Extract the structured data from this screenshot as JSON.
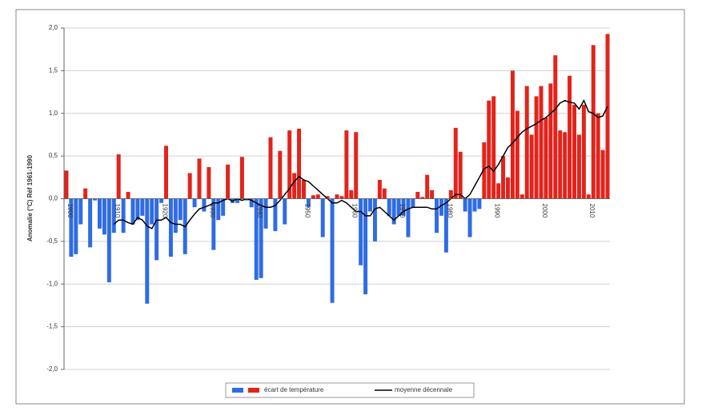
{
  "chart_data": {
    "type": "bar",
    "y_label": "Anomalie (°C) Réf 1961-1990",
    "x": [
      1900,
      1901,
      1902,
      1903,
      1904,
      1905,
      1906,
      1907,
      1908,
      1909,
      1910,
      1911,
      1912,
      1913,
      1914,
      1915,
      1916,
      1917,
      1918,
      1919,
      1920,
      1921,
      1922,
      1923,
      1924,
      1925,
      1926,
      1927,
      1928,
      1929,
      1930,
      1931,
      1932,
      1933,
      1934,
      1935,
      1936,
      1937,
      1938,
      1939,
      1940,
      1941,
      1942,
      1943,
      1944,
      1945,
      1946,
      1947,
      1948,
      1949,
      1950,
      1951,
      1952,
      1953,
      1954,
      1955,
      1956,
      1957,
      1958,
      1959,
      1960,
      1961,
      1962,
      1963,
      1964,
      1965,
      1966,
      1967,
      1968,
      1969,
      1970,
      1971,
      1972,
      1973,
      1974,
      1975,
      1976,
      1977,
      1978,
      1979,
      1980,
      1981,
      1982,
      1983,
      1984,
      1985,
      1986,
      1987,
      1988,
      1989,
      1990,
      1991,
      1992,
      1993,
      1994,
      1995,
      1996,
      1997,
      1998,
      1999,
      2000,
      2001,
      2002,
      2003,
      2004,
      2005,
      2006,
      2007,
      2008,
      2009,
      2010,
      2011,
      2012,
      2013,
      2014
    ],
    "series": [
      {
        "name": "écart de température",
        "type": "bar",
        "color_positive": "#e3231b",
        "color_negative": "#2f6ce5",
        "values": [
          0.33,
          -0.68,
          -0.65,
          -0.3,
          0.12,
          -0.57,
          -0.02,
          -0.35,
          -0.42,
          -0.98,
          -0.4,
          0.52,
          -0.4,
          0.08,
          -0.3,
          -0.25,
          -0.2,
          -1.23,
          -0.3,
          -0.72,
          -0.05,
          0.62,
          -0.68,
          -0.4,
          -0.25,
          -0.65,
          0.3,
          -0.1,
          0.47,
          -0.15,
          0.37,
          -0.6,
          -0.25,
          -0.2,
          0.4,
          -0.05,
          -0.05,
          0.49,
          -0.02,
          -0.1,
          -0.95,
          -0.93,
          -0.35,
          0.72,
          -0.38,
          0.56,
          -0.3,
          0.8,
          0.3,
          0.82,
          0.22,
          -0.1,
          0.04,
          0.05,
          -0.45,
          0.03,
          -1.22,
          0.05,
          0.03,
          0.8,
          0.1,
          0.78,
          -0.78,
          -1.12,
          -0.15,
          -0.5,
          0.22,
          0.12,
          -0.2,
          -0.3,
          -0.2,
          -0.2,
          -0.45,
          -0.1,
          0.08,
          0.02,
          0.28,
          0.1,
          -0.4,
          -0.2,
          -0.63,
          0.1,
          0.83,
          0.55,
          -0.15,
          -0.45,
          -0.15,
          -0.12,
          0.66,
          1.15,
          1.2,
          0.18,
          0.5,
          0.25,
          1.5,
          1.03,
          0.05,
          1.32,
          0.75,
          1.2,
          1.32,
          0.95,
          1.35,
          1.68,
          0.8,
          0.78,
          1.44,
          1.1,
          0.75,
          1.1,
          0.05,
          1.8,
          1.0,
          0.57,
          1.93
        ]
      },
      {
        "name": "moyenne décennale",
        "type": "line",
        "color": "#000000",
        "values": [
          null,
          null,
          null,
          null,
          null,
          null,
          null,
          null,
          null,
          null,
          -0.3,
          -0.25,
          -0.25,
          -0.28,
          -0.3,
          -0.22,
          -0.25,
          -0.32,
          -0.35,
          -0.25,
          -0.25,
          -0.22,
          -0.28,
          -0.3,
          -0.3,
          -0.33,
          -0.25,
          -0.18,
          -0.12,
          -0.1,
          -0.08,
          -0.05,
          -0.05,
          -0.02,
          0.0,
          -0.03,
          0.0,
          -0.02,
          0.0,
          -0.02,
          -0.05,
          -0.08,
          -0.1,
          -0.1,
          -0.08,
          -0.02,
          0.05,
          0.12,
          0.2,
          0.26,
          0.22,
          0.2,
          0.15,
          0.1,
          0.05,
          0.0,
          -0.05,
          -0.05,
          -0.02,
          -0.05,
          -0.1,
          -0.15,
          -0.15,
          -0.2,
          -0.2,
          -0.12,
          -0.1,
          -0.15,
          -0.2,
          -0.25,
          -0.2,
          -0.15,
          -0.12,
          -0.1,
          -0.1,
          -0.1,
          -0.1,
          -0.12,
          -0.12,
          -0.08,
          -0.05,
          0.0,
          0.05,
          0.05,
          0.0,
          0.05,
          0.15,
          0.25,
          0.35,
          0.38,
          0.32,
          0.4,
          0.5,
          0.6,
          0.65,
          0.72,
          0.78,
          0.82,
          0.85,
          0.88,
          0.92,
          0.95,
          1.0,
          1.05,
          1.12,
          1.15,
          1.13,
          1.12,
          1.05,
          1.15,
          1.02,
          1.0,
          0.95,
          0.97,
          1.08
        ]
      }
    ],
    "xlim": [
      1899.5,
      2014.5
    ],
    "xticks": [
      1900,
      1910,
      1920,
      1930,
      1940,
      1950,
      1960,
      1970,
      1980,
      1990,
      2000,
      2010
    ],
    "xtick_color": "#2e8b2e",
    "ylim": [
      -2,
      2
    ],
    "yticks": [
      {
        "value": 2,
        "label": "2,0"
      },
      {
        "value": 1.5,
        "label": "1,5"
      },
      {
        "value": 1,
        "label": "1,0"
      },
      {
        "value": 0.5,
        "label": "0,5"
      },
      {
        "value": 0,
        "label": "0,0"
      },
      {
        "value": -0.5,
        "label": "-0,5"
      },
      {
        "value": -1,
        "label": "-1,0"
      },
      {
        "value": -1.5,
        "label": "-1,5"
      },
      {
        "value": -2,
        "label": "-2,0"
      }
    ],
    "grid": true,
    "legend": "bottom"
  }
}
